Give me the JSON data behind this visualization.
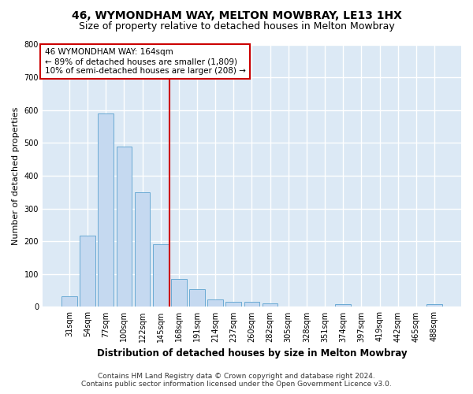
{
  "title": "46, WYMONDHAM WAY, MELTON MOWBRAY, LE13 1HX",
  "subtitle": "Size of property relative to detached houses in Melton Mowbray",
  "xlabel": "Distribution of detached houses by size in Melton Mowbray",
  "ylabel": "Number of detached properties",
  "categories": [
    "31sqm",
    "54sqm",
    "77sqm",
    "100sqm",
    "122sqm",
    "145sqm",
    "168sqm",
    "191sqm",
    "214sqm",
    "237sqm",
    "260sqm",
    "282sqm",
    "305sqm",
    "328sqm",
    "351sqm",
    "374sqm",
    "397sqm",
    "419sqm",
    "442sqm",
    "465sqm",
    "488sqm"
  ],
  "values": [
    32,
    218,
    590,
    488,
    350,
    190,
    85,
    55,
    22,
    15,
    15,
    10,
    0,
    0,
    0,
    8,
    0,
    0,
    0,
    0,
    8
  ],
  "bar_color": "#c5d9f0",
  "bar_edge_color": "#6aaad4",
  "highlight_x": "168sqm",
  "highlight_line_color": "#cc0000",
  "annotation_text": "46 WYMONDHAM WAY: 164sqm\n← 89% of detached houses are smaller (1,809)\n10% of semi-detached houses are larger (208) →",
  "annotation_box_color": "#ffffff",
  "annotation_box_edge_color": "#cc0000",
  "ylim": [
    0,
    800
  ],
  "yticks": [
    0,
    100,
    200,
    300,
    400,
    500,
    600,
    700,
    800
  ],
  "background_color": "#dce9f5",
  "grid_color": "#ffffff",
  "footer_line1": "Contains HM Land Registry data © Crown copyright and database right 2024.",
  "footer_line2": "Contains public sector information licensed under the Open Government Licence v3.0.",
  "title_fontsize": 10,
  "subtitle_fontsize": 9,
  "tick_fontsize": 7,
  "ylabel_fontsize": 8,
  "xlabel_fontsize": 8.5,
  "annotation_fontsize": 7.5,
  "footer_fontsize": 6.5
}
